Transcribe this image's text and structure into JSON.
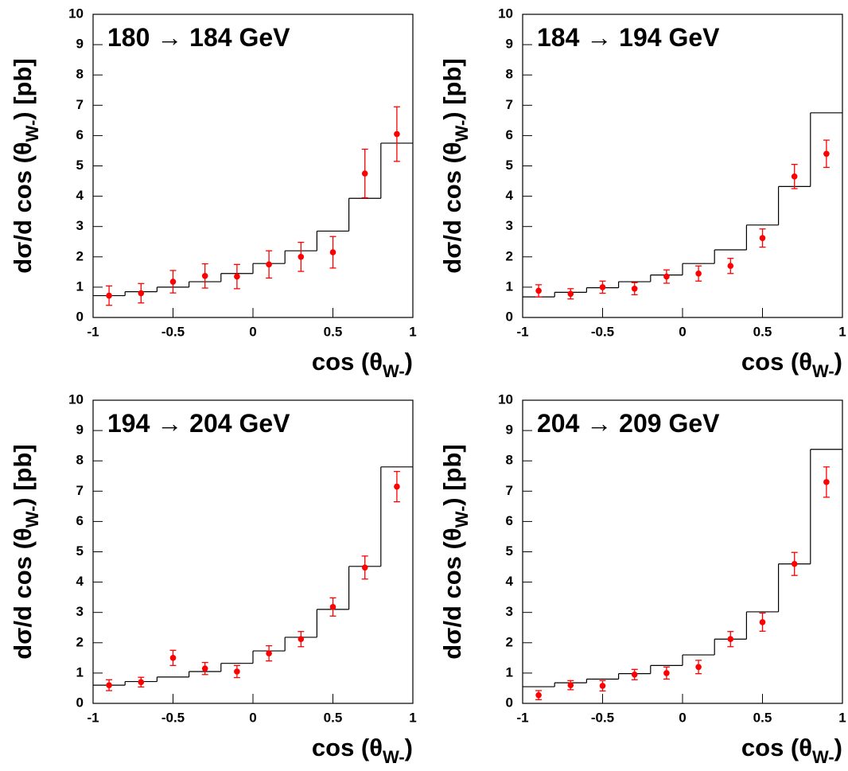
{
  "chart_data": [
    {
      "type": "histogram",
      "title": "180 → 184 GeV",
      "xlabel": [
        "cos (θ",
        "W-",
        ")"
      ],
      "ylabel": [
        "dσ/d cos (θ",
        "W-",
        ") [pb]"
      ],
      "bins": [
        -1,
        -0.8,
        -0.6,
        -0.4,
        -0.2,
        0,
        0.2,
        0.4,
        0.6,
        0.8,
        1
      ],
      "values": [
        0.72,
        0.85,
        1.0,
        1.18,
        1.45,
        1.78,
        2.2,
        2.85,
        3.93,
        5.75
      ],
      "color": "#000000",
      "data_points": {
        "color": "#ff0000",
        "x": [
          -0.9,
          -0.7,
          -0.5,
          -0.3,
          -0.1,
          0.1,
          0.3,
          0.5,
          0.7,
          0.9
        ],
        "values": [
          0.72,
          0.8,
          1.18,
          1.37,
          1.35,
          1.75,
          2.0,
          2.15,
          4.75,
          6.05
        ],
        "errors": [
          0.32,
          0.32,
          0.37,
          0.4,
          0.4,
          0.45,
          0.48,
          0.52,
          0.8,
          0.9
        ]
      },
      "xlim": [
        -1,
        1
      ],
      "ylim": [
        0,
        10
      ],
      "xticks": [
        -1,
        -0.5,
        0,
        0.5,
        1
      ],
      "yticks": [
        0,
        1,
        2,
        3,
        4,
        5,
        6,
        7,
        8,
        9,
        10
      ]
    },
    {
      "type": "histogram",
      "title": "184 → 194 GeV",
      "xlabel": [
        "cos (θ",
        "W-",
        ")"
      ],
      "ylabel": [
        "dσ/d cos (θ",
        "W-",
        ") [pb]"
      ],
      "bins": [
        -1,
        -0.8,
        -0.6,
        -0.4,
        -0.2,
        0,
        0.2,
        0.4,
        0.6,
        0.8,
        1
      ],
      "values": [
        0.68,
        0.83,
        0.98,
        1.18,
        1.4,
        1.78,
        2.23,
        3.05,
        4.32,
        6.75
      ],
      "color": "#000000",
      "data_points": {
        "color": "#ff0000",
        "x": [
          -0.9,
          -0.7,
          -0.5,
          -0.3,
          -0.1,
          0.1,
          0.3,
          0.5,
          0.7,
          0.9
        ],
        "values": [
          0.88,
          0.78,
          1.0,
          0.95,
          1.35,
          1.45,
          1.7,
          2.62,
          4.65,
          5.4
        ],
        "errors": [
          0.2,
          0.17,
          0.2,
          0.2,
          0.22,
          0.25,
          0.25,
          0.3,
          0.4,
          0.45
        ]
      },
      "xlim": [
        -1,
        1
      ],
      "ylim": [
        0,
        10
      ],
      "xticks": [
        -1,
        -0.5,
        0,
        0.5,
        1
      ],
      "yticks": [
        0,
        1,
        2,
        3,
        4,
        5,
        6,
        7,
        8,
        9,
        10
      ]
    },
    {
      "type": "histogram",
      "title": "194 → 204 GeV",
      "xlabel": [
        "cos (θ",
        "W-",
        ")"
      ],
      "ylabel": [
        "dσ/d cos (θ",
        "W-",
        ") [pb]"
      ],
      "bins": [
        -1,
        -0.8,
        -0.6,
        -0.4,
        -0.2,
        0,
        0.2,
        0.4,
        0.6,
        0.8,
        1
      ],
      "values": [
        0.6,
        0.72,
        0.87,
        1.05,
        1.32,
        1.73,
        2.18,
        3.1,
        4.52,
        7.8
      ],
      "color": "#000000",
      "data_points": {
        "color": "#ff0000",
        "x": [
          -0.9,
          -0.7,
          -0.5,
          -0.3,
          -0.1,
          0.1,
          0.3,
          0.5,
          0.7,
          0.9
        ],
        "values": [
          0.6,
          0.7,
          1.5,
          1.15,
          1.05,
          1.65,
          2.12,
          3.18,
          4.48,
          7.15
        ],
        "errors": [
          0.18,
          0.16,
          0.25,
          0.2,
          0.2,
          0.25,
          0.25,
          0.3,
          0.38,
          0.5
        ]
      },
      "xlim": [
        -1,
        1
      ],
      "ylim": [
        0,
        10
      ],
      "xticks": [
        -1,
        -0.5,
        0,
        0.5,
        1
      ],
      "yticks": [
        0,
        1,
        2,
        3,
        4,
        5,
        6,
        7,
        8,
        9,
        10
      ]
    },
    {
      "type": "histogram",
      "title": "204 → 209 GeV",
      "xlabel": [
        "cos (θ",
        "W-",
        ")"
      ],
      "ylabel": [
        "dσ/d cos (θ",
        "W-",
        ") [pb]"
      ],
      "bins": [
        -1,
        -0.8,
        -0.6,
        -0.4,
        -0.2,
        0,
        0.2,
        0.4,
        0.6,
        0.8,
        1
      ],
      "values": [
        0.55,
        0.68,
        0.8,
        0.98,
        1.25,
        1.6,
        2.12,
        3.02,
        4.6,
        8.38
      ],
      "color": "#000000",
      "data_points": {
        "color": "#ff0000",
        "x": [
          -0.9,
          -0.7,
          -0.5,
          -0.3,
          -0.1,
          0.1,
          0.3,
          0.5,
          0.7,
          0.9
        ],
        "values": [
          0.27,
          0.6,
          0.58,
          0.95,
          1.0,
          1.2,
          2.12,
          2.68,
          4.6,
          7.3
        ],
        "errors": [
          0.15,
          0.15,
          0.17,
          0.17,
          0.2,
          0.22,
          0.25,
          0.3,
          0.38,
          0.5
        ]
      },
      "xlim": [
        -1,
        1
      ],
      "ylim": [
        0,
        10
      ],
      "xticks": [
        -1,
        -0.5,
        0,
        0.5,
        1
      ],
      "yticks": [
        0,
        1,
        2,
        3,
        4,
        5,
        6,
        7,
        8,
        9,
        10
      ]
    }
  ]
}
